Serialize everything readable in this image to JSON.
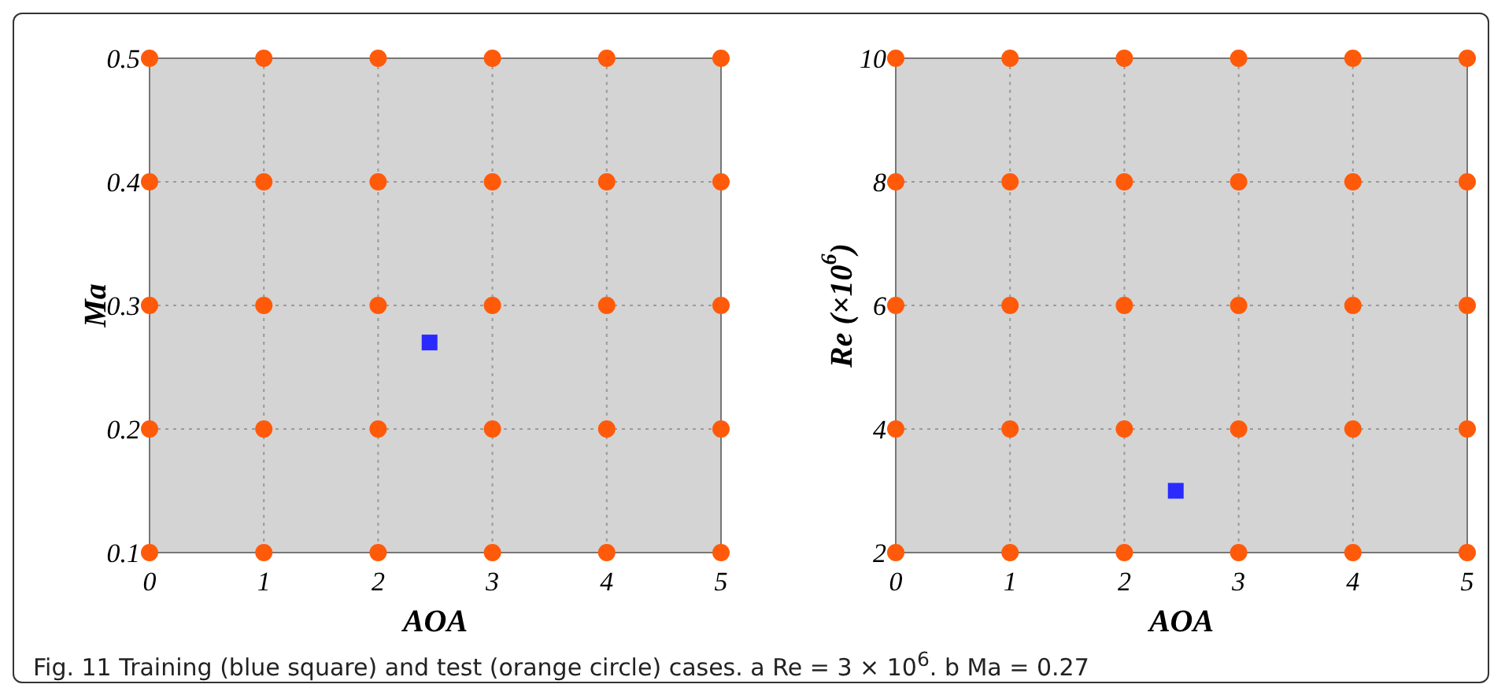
{
  "chart_data": [
    {
      "type": "scatter",
      "xlabel": "AOA",
      "ylabel": "Ma",
      "xlim": [
        0,
        5
      ],
      "xticks": [
        0,
        1,
        2,
        3,
        4,
        5
      ],
      "ylim": [
        0.1,
        0.5
      ],
      "yticks": [
        0.1,
        0.2,
        0.3,
        0.4,
        0.5
      ],
      "grid": true,
      "annotations": [
        "Fig. 11 Training (blue square) and test (orange circle) cases. a Re = 3 × 10$^{6}$. b Ma = 0.27"
      ],
      "series": [
        {
          "color": "#ff5a0a",
          "marker": "circle",
          "x": [
            0,
            1,
            2,
            3,
            4,
            5,
            0,
            1,
            2,
            3,
            4,
            5,
            0,
            1,
            2,
            3,
            4,
            5,
            0,
            1,
            2,
            3,
            4,
            5,
            0,
            1,
            2,
            3,
            4,
            5
          ],
          "values": [
            0.1,
            0.1,
            0.1,
            0.1,
            0.1,
            0.1,
            0.2,
            0.2,
            0.2,
            0.2,
            0.2,
            0.2,
            0.3,
            0.3,
            0.3,
            0.3,
            0.3,
            0.3,
            0.4,
            0.4,
            0.4,
            0.4,
            0.4,
            0.4,
            0.5,
            0.5,
            0.5,
            0.5,
            0.5,
            0.5
          ]
        },
        {
          "color": "#2a2aff",
          "marker": "square",
          "x": [
            2.45
          ],
          "values": [
            0.27
          ]
        }
      ]
    },
    {
      "type": "scatter",
      "xlabel": "AOA",
      "ylabel": "Re (×10$^{6}$)",
      "xlim": [
        0,
        5
      ],
      "xticks": [
        0,
        1,
        2,
        3,
        4,
        5
      ],
      "ylim": [
        2,
        10
      ],
      "yticks": [
        2,
        4,
        6,
        8,
        10
      ],
      "grid": true,
      "series": [
        {
          "color": "#ff5a0a",
          "marker": "circle",
          "x": [
            0,
            1,
            2,
            3,
            4,
            5,
            0,
            1,
            2,
            3,
            4,
            5,
            0,
            1,
            2,
            3,
            4,
            5,
            0,
            1,
            2,
            3,
            4,
            5,
            0,
            1,
            2,
            3,
            4,
            5
          ],
          "values": [
            2,
            2,
            2,
            2,
            2,
            2,
            4,
            4,
            4,
            4,
            4,
            4,
            6,
            6,
            6,
            6,
            6,
            6,
            8,
            8,
            8,
            8,
            8,
            8,
            10,
            10,
            10,
            10,
            10,
            10
          ]
        },
        {
          "color": "#2a2aff",
          "marker": "square",
          "x": [
            2.45
          ],
          "values": [
            3
          ]
        }
      ]
    }
  ]
}
